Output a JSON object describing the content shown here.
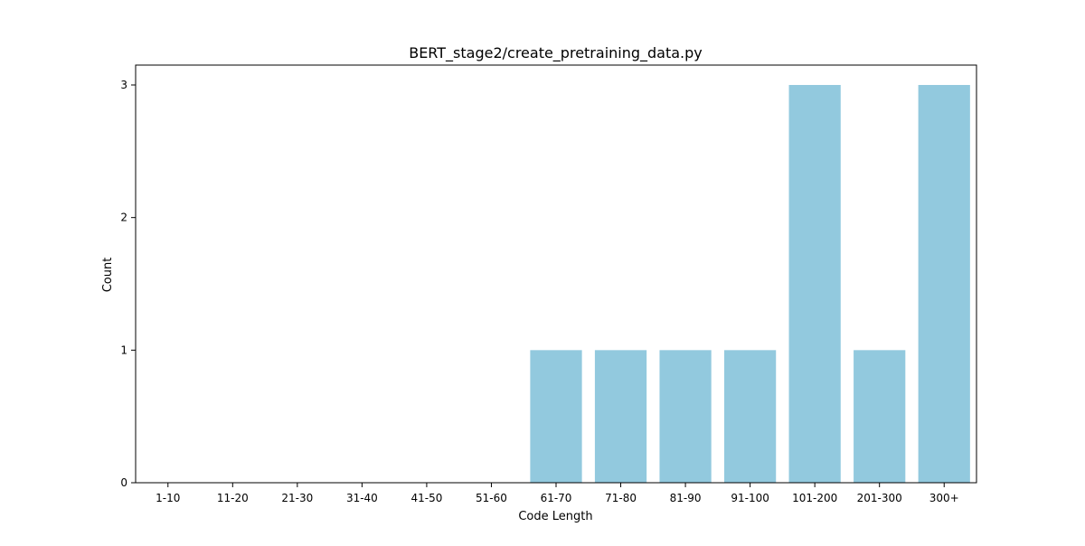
{
  "chart_data": {
    "type": "bar",
    "title": "BERT_stage2/create_pretraining_data.py",
    "xlabel": "Code Length",
    "ylabel": "Count",
    "categories": [
      "1-10",
      "11-20",
      "21-30",
      "31-40",
      "41-50",
      "51-60",
      "61-70",
      "71-80",
      "81-90",
      "91-100",
      "101-200",
      "201-300",
      "300+"
    ],
    "values": [
      0,
      0,
      0,
      0,
      0,
      0,
      1,
      1,
      1,
      1,
      3,
      1,
      3
    ],
    "yticks": [
      0,
      1,
      2,
      3
    ],
    "ylim": [
      0,
      3.15
    ],
    "grid": false,
    "legend": "none",
    "bar_color": "#92c9de"
  }
}
